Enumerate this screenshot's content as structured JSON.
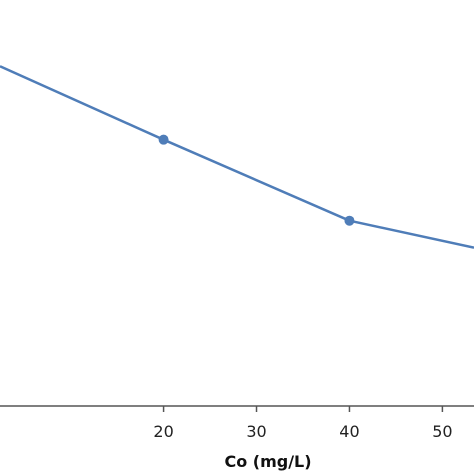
{
  "chart_data": {
    "type": "line",
    "title": "",
    "xlabel": "Co (mg/L)",
    "ylabel": "",
    "xlim": [
      2.4,
      53.4
    ],
    "ylim": [
      0,
      1
    ],
    "x_ticks": [
      20,
      30,
      40,
      50
    ],
    "grid": false,
    "series": [
      {
        "color": "#4f7db8",
        "x": [
          2.4,
          20,
          40,
          53.4
        ],
        "y": [
          0.88,
          0.69,
          0.48,
          0.41
        ],
        "markers_at": [
          20,
          40
        ]
      }
    ]
  }
}
